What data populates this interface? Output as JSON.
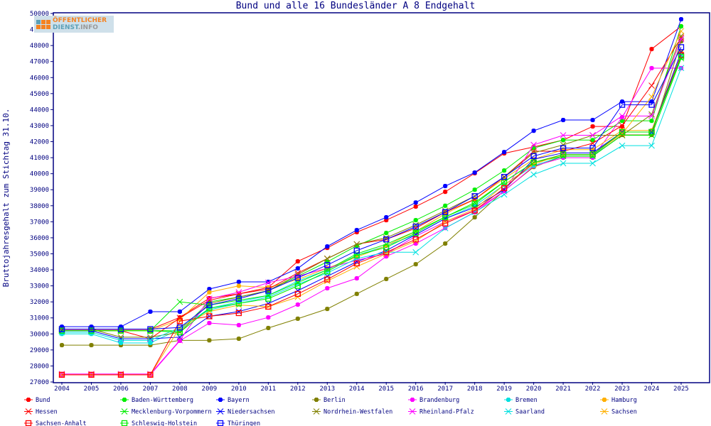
{
  "chart_data": {
    "type": "line",
    "title": "Bund und alle 16 Bundesländer A 8 Endgehalt",
    "xlabel": "",
    "ylabel": "Bruttojahresgehalt zum Stichtag 31.10.",
    "ylim": [
      27000,
      50000
    ],
    "ytick_step": 1000,
    "grid": false,
    "legend_position": "bottom",
    "logo_text": "ÖFFENTLICHER DIENST.INFO",
    "x": [
      2004,
      2005,
      2006,
      2007,
      2008,
      2009,
      2010,
      2011,
      2012,
      2013,
      2014,
      2015,
      2016,
      2017,
      2018,
      2019,
      2020,
      2021,
      2022,
      2023,
      2024,
      2025
    ],
    "series": [
      {
        "name": "Bund",
        "color": "#ff0000",
        "marker": "star",
        "values": [
          30280,
          30280,
          30280,
          30280,
          31030,
          32230,
          32500,
          32900,
          34530,
          35370,
          36350,
          37100,
          37950,
          38870,
          40030,
          41270,
          41670,
          42100,
          42950,
          42950,
          47780,
          49200
        ]
      },
      {
        "name": "Baden-Württemberg",
        "color": "#00ee00",
        "marker": "star",
        "values": [
          30200,
          30200,
          30200,
          30200,
          30200,
          32000,
          32300,
          32700,
          33600,
          34500,
          35500,
          36300,
          37100,
          38000,
          39000,
          40200,
          41600,
          42100,
          42100,
          43300,
          43300,
          49200
        ]
      },
      {
        "name": "Bayern",
        "color": "#0000ff",
        "marker": "star",
        "values": [
          30450,
          30450,
          30450,
          31390,
          31390,
          32800,
          33250,
          33250,
          34090,
          35460,
          36480,
          37280,
          38200,
          39230,
          40070,
          41350,
          42680,
          43350,
          43350,
          44500,
          44500,
          49640
        ]
      },
      {
        "name": "Berlin",
        "color": "#808000",
        "marker": "star",
        "values": [
          29300,
          29300,
          29300,
          29300,
          29600,
          29600,
          29700,
          30370,
          30950,
          31560,
          32500,
          33430,
          34350,
          35640,
          37280,
          38950,
          40420,
          41090,
          41090,
          42420,
          42420,
          48270
        ]
      },
      {
        "name": "Brandenburg",
        "color": "#ff00ff",
        "marker": "star",
        "values": [
          27450,
          27450,
          27450,
          27450,
          29570,
          30680,
          30550,
          31030,
          31830,
          32850,
          33470,
          34840,
          35640,
          36610,
          37590,
          38920,
          40470,
          41000,
          41000,
          43530,
          46590,
          46590
        ]
      },
      {
        "name": "Bremen",
        "color": "#00e0e0",
        "marker": "star",
        "values": [
          30000,
          30000,
          29440,
          29440,
          30300,
          31600,
          32000,
          32400,
          33300,
          34000,
          34900,
          35500,
          36200,
          37200,
          38000,
          39300,
          40500,
          41100,
          41100,
          42600,
          42600,
          47300
        ]
      },
      {
        "name": "Hamburg",
        "color": "#ffb000",
        "marker": "star",
        "values": [
          30200,
          30200,
          30200,
          30200,
          30900,
          32600,
          33000,
          32900,
          33400,
          34100,
          34800,
          35500,
          36400,
          37500,
          38400,
          39700,
          40900,
          41500,
          41500,
          42700,
          42700,
          47600
        ]
      },
      {
        "name": "Hessen",
        "color": "#ff0000",
        "marker": "x",
        "values": [
          30200,
          30200,
          30200,
          29700,
          31000,
          32100,
          32500,
          32800,
          33800,
          34700,
          35600,
          35900,
          36600,
          37600,
          38400,
          39800,
          41400,
          41400,
          41900,
          43000,
          45500,
          48500
        ]
      },
      {
        "name": "Mecklenburg-Vorpommern",
        "color": "#00ee00",
        "marker": "x",
        "values": [
          30200,
          30200,
          30200,
          30200,
          32000,
          31800,
          32100,
          32400,
          33200,
          34000,
          35000,
          35600,
          36400,
          37300,
          38200,
          39500,
          40700,
          41100,
          41100,
          42400,
          42400,
          47200
        ]
      },
      {
        "name": "Niedersachsen",
        "color": "#0000ff",
        "marker": "x",
        "values": [
          30200,
          30200,
          29700,
          29700,
          29800,
          31100,
          31400,
          31900,
          32700,
          33600,
          34500,
          35200,
          36200,
          37200,
          37900,
          39000,
          40900,
          41300,
          41300,
          42600,
          42600,
          47600
        ]
      },
      {
        "name": "Nordrhein-Westfalen",
        "color": "#808000",
        "marker": "x",
        "values": [
          30300,
          30300,
          29800,
          29800,
          30100,
          31900,
          32300,
          32700,
          33700,
          34700,
          35600,
          36000,
          36800,
          37700,
          38600,
          39800,
          41300,
          41800,
          42400,
          42400,
          43700,
          48600
        ]
      },
      {
        "name": "Rheinland-Pfalz",
        "color": "#ff00ff",
        "marker": "x",
        "values": [
          27500,
          27500,
          27500,
          27500,
          29600,
          32200,
          32600,
          33200,
          33600,
          34100,
          34600,
          35000,
          36100,
          37000,
          37700,
          38900,
          41800,
          42400,
          42400,
          43600,
          43600,
          48400
        ]
      },
      {
        "name": "Saarland",
        "color": "#00e0e0",
        "marker": "x",
        "values": [
          30100,
          30100,
          29600,
          29600,
          30400,
          31500,
          31900,
          32300,
          33100,
          33800,
          34700,
          35100,
          35100,
          36600,
          37600,
          38700,
          39950,
          40650,
          40650,
          41750,
          41750,
          46600
        ]
      },
      {
        "name": "Sachsen",
        "color": "#ffb000",
        "marker": "x",
        "values": [
          27450,
          27450,
          27450,
          27450,
          30400,
          31400,
          31800,
          31700,
          32300,
          33300,
          34200,
          35000,
          35800,
          37000,
          37800,
          39300,
          40600,
          41200,
          41200,
          42500,
          44800,
          48900
        ]
      },
      {
        "name": "Sachsen-Anhalt",
        "color": "#ff0000",
        "marker": "square",
        "values": [
          27450,
          27450,
          27450,
          27450,
          30800,
          31100,
          31300,
          31700,
          32500,
          33400,
          34400,
          35100,
          35900,
          36900,
          37700,
          39100,
          40700,
          41200,
          41200,
          42600,
          42600,
          47400
        ]
      },
      {
        "name": "Schleswig-Holstein",
        "color": "#00ee00",
        "marker": "square",
        "values": [
          30200,
          30200,
          30200,
          30200,
          30100,
          31600,
          31900,
          32200,
          33000,
          33900,
          34900,
          35400,
          36300,
          37300,
          38100,
          39500,
          40700,
          41200,
          41200,
          42600,
          42600,
          47300
        ]
      },
      {
        "name": "Thüringen",
        "color": "#0000ff",
        "marker": "square",
        "values": [
          30300,
          30300,
          30300,
          30300,
          30400,
          31800,
          32200,
          32700,
          33500,
          34300,
          35200,
          35900,
          36700,
          37600,
          38600,
          39800,
          41100,
          41600,
          41600,
          44300,
          44300,
          47900
        ]
      }
    ]
  }
}
